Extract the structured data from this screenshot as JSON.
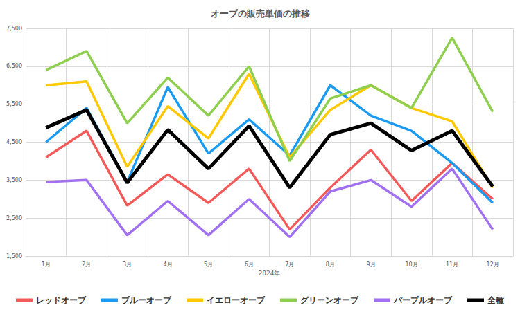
{
  "chart_data": {
    "type": "line",
    "title": "オーブの販売単価の推移",
    "x_label": "2024年",
    "categories": [
      "1月",
      "2月",
      "3月",
      "4月",
      "5月",
      "6月",
      "7月",
      "8月",
      "9月",
      "10月",
      "11月",
      "12月"
    ],
    "series": [
      {
        "name": "レッドオーブ",
        "color": "#f25a5a",
        "values": [
          4100,
          4800,
          2830,
          3650,
          2900,
          3800,
          2200,
          3300,
          4300,
          2950,
          3950,
          3000
        ]
      },
      {
        "name": "ブルーオーブ",
        "color": "#1a9af0",
        "values": [
          4500,
          5400,
          3450,
          5950,
          4200,
          5100,
          4150,
          6000,
          5200,
          4800,
          3950,
          2900
        ]
      },
      {
        "name": "イエローオーブ",
        "color": "#ffc800",
        "values": [
          6000,
          6100,
          3850,
          5450,
          4600,
          6300,
          4100,
          5350,
          6000,
          5400,
          5050,
          3300
        ]
      },
      {
        "name": "グリーンオーブ",
        "color": "#8fcf4f",
        "values": [
          6400,
          6900,
          5000,
          6200,
          5200,
          6500,
          4000,
          5650,
          6000,
          5400,
          7250,
          5300
        ]
      },
      {
        "name": "パープルオーブ",
        "color": "#a070f0",
        "values": [
          3450,
          3500,
          2050,
          2950,
          2050,
          3000,
          2000,
          3200,
          3500,
          2800,
          3800,
          2200
        ]
      },
      {
        "name": "全種",
        "color": "#000000",
        "values": [
          4880,
          5350,
          3430,
          4830,
          3800,
          4930,
          3300,
          4700,
          5000,
          4280,
          4800,
          3330
        ]
      }
    ],
    "ylim": [
      1500,
      7500
    ],
    "yticks": [
      {
        "value": 1500,
        "label": "1,500"
      },
      {
        "value": 2500,
        "label": "2,500"
      },
      {
        "value": 3500,
        "label": "3,500"
      },
      {
        "value": 4500,
        "label": "4,500"
      },
      {
        "value": 5500,
        "label": "5,500"
      },
      {
        "value": 6500,
        "label": "6,500"
      },
      {
        "value": 7500,
        "label": "7,500"
      }
    ],
    "grid": true,
    "legend": "bottom"
  }
}
